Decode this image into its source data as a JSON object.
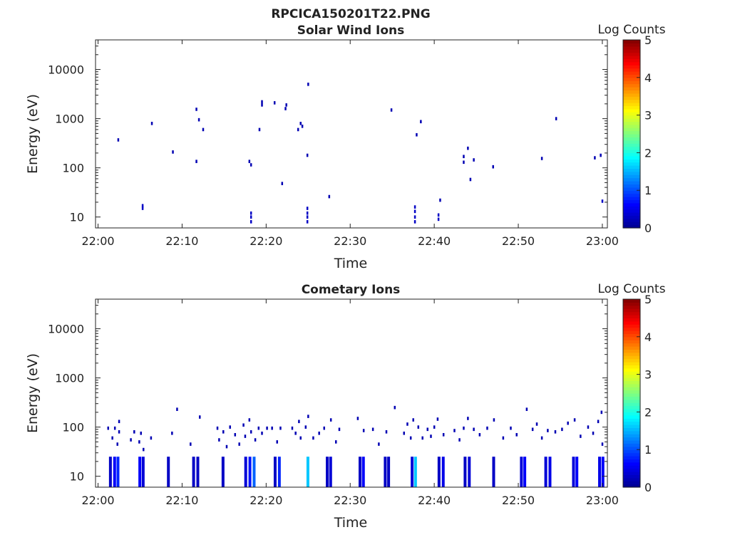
{
  "figure": {
    "title": "RPCICA150201T22.PNG"
  },
  "colors": {
    "colormap": [
      "#00008f",
      "#0000ff",
      "#0080ff",
      "#00ffff",
      "#80ff80",
      "#ffff00",
      "#ff8000",
      "#ff0000",
      "#800000"
    ],
    "axis": "#222222"
  },
  "chart_data": [
    {
      "type": "heatmap",
      "title": "Solar Wind Ions",
      "xlabel": "Time",
      "ylabel": "Energy (eV)",
      "xlim": [
        "22:00",
        "23:00"
      ],
      "xticks": [
        "22:00",
        "22:10",
        "22:20",
        "22:30",
        "22:40",
        "22:50",
        "23:00"
      ],
      "ylim": [
        6,
        40000
      ],
      "yscale": "log",
      "yticks": [
        10,
        100,
        1000,
        10000
      ],
      "ytick_labels": [
        "10",
        "100",
        "1000",
        "10000"
      ],
      "colorbar": {
        "label": "Log Counts",
        "range": [
          0,
          5
        ],
        "ticks": [
          "0",
          "1",
          "2",
          "3",
          "4",
          "5"
        ]
      },
      "points_note": "t in minutes after 22:00, e in eV, v = log counts",
      "points": [
        {
          "t": 2.3,
          "e": 370,
          "v": 0.2
        },
        {
          "t": 5.2,
          "e": 15,
          "v": 0.3
        },
        {
          "t": 5.2,
          "e": 17,
          "v": 0.3
        },
        {
          "t": 6.3,
          "e": 800,
          "v": 0.2
        },
        {
          "t": 8.8,
          "e": 210,
          "v": 0.2
        },
        {
          "t": 11.6,
          "e": 1550,
          "v": 0.2
        },
        {
          "t": 11.6,
          "e": 135,
          "v": 0.2
        },
        {
          "t": 11.9,
          "e": 950,
          "v": 0.2
        },
        {
          "t": 12.4,
          "e": 600,
          "v": 0.2
        },
        {
          "t": 17.9,
          "e": 135,
          "v": 0.2
        },
        {
          "t": 18.1,
          "e": 115,
          "v": 0.2
        },
        {
          "t": 18.1,
          "e": 8,
          "v": 0.3
        },
        {
          "t": 18.1,
          "e": 10,
          "v": 0.3
        },
        {
          "t": 18.1,
          "e": 12,
          "v": 0.3
        },
        {
          "t": 19.1,
          "e": 600,
          "v": 0.2
        },
        {
          "t": 19.4,
          "e": 2200,
          "v": 0.2
        },
        {
          "t": 19.4,
          "e": 1900,
          "v": 0.2
        },
        {
          "t": 20.9,
          "e": 2100,
          "v": 0.2
        },
        {
          "t": 21.8,
          "e": 48,
          "v": 0.2
        },
        {
          "t": 22.2,
          "e": 1600,
          "v": 0.2
        },
        {
          "t": 22.3,
          "e": 1900,
          "v": 0.2
        },
        {
          "t": 23.7,
          "e": 600,
          "v": 0.2
        },
        {
          "t": 24.0,
          "e": 800,
          "v": 0.2
        },
        {
          "t": 24.2,
          "e": 700,
          "v": 0.2
        },
        {
          "t": 24.9,
          "e": 5000,
          "v": 0.2
        },
        {
          "t": 24.8,
          "e": 180,
          "v": 0.2
        },
        {
          "t": 24.8,
          "e": 8,
          "v": 0.3
        },
        {
          "t": 24.8,
          "e": 10,
          "v": 0.3
        },
        {
          "t": 24.8,
          "e": 12,
          "v": 0.3
        },
        {
          "t": 24.8,
          "e": 15,
          "v": 0.3
        },
        {
          "t": 27.4,
          "e": 26,
          "v": 0.2
        },
        {
          "t": 34.8,
          "e": 1500,
          "v": 0.2
        },
        {
          "t": 37.6,
          "e": 8,
          "v": 0.3
        },
        {
          "t": 37.6,
          "e": 10,
          "v": 0.3
        },
        {
          "t": 37.6,
          "e": 13,
          "v": 0.3
        },
        {
          "t": 37.6,
          "e": 16,
          "v": 0.3
        },
        {
          "t": 37.8,
          "e": 470,
          "v": 0.2
        },
        {
          "t": 38.3,
          "e": 870,
          "v": 0.2
        },
        {
          "t": 40.4,
          "e": 9,
          "v": 0.3
        },
        {
          "t": 40.4,
          "e": 11,
          "v": 0.3
        },
        {
          "t": 40.6,
          "e": 22,
          "v": 0.2
        },
        {
          "t": 43.4,
          "e": 130,
          "v": 0.2
        },
        {
          "t": 43.4,
          "e": 170,
          "v": 0.2
        },
        {
          "t": 43.9,
          "e": 250,
          "v": 0.2
        },
        {
          "t": 44.2,
          "e": 58,
          "v": 0.2
        },
        {
          "t": 44.6,
          "e": 145,
          "v": 0.2
        },
        {
          "t": 46.9,
          "e": 105,
          "v": 0.2
        },
        {
          "t": 52.7,
          "e": 155,
          "v": 0.2
        },
        {
          "t": 54.4,
          "e": 1000,
          "v": 0.2
        },
        {
          "t": 59.0,
          "e": 160,
          "v": 0.2
        },
        {
          "t": 59.7,
          "e": 180,
          "v": 0.2
        },
        {
          "t": 59.9,
          "e": 21,
          "v": 0.3
        }
      ]
    },
    {
      "type": "heatmap",
      "title": "Cometary Ions",
      "xlabel": "Time",
      "ylabel": "Energy (eV)",
      "xlim": [
        "22:00",
        "23:00"
      ],
      "xticks": [
        "22:00",
        "22:10",
        "22:20",
        "22:30",
        "22:40",
        "22:50",
        "23:00"
      ],
      "ylim": [
        6,
        40000
      ],
      "yscale": "log",
      "yticks": [
        10,
        100,
        1000,
        10000
      ],
      "ytick_labels": [
        "10",
        "100",
        "1000",
        "10000"
      ],
      "colorbar": {
        "label": "Log Counts",
        "range": [
          0,
          5
        ],
        "ticks": [
          "0",
          "1",
          "2",
          "3",
          "4",
          "5"
        ]
      },
      "points_note": "t in minutes after 22:00, e in eV, v = log counts; low-energy columns span roughly 6-25 eV",
      "columns": [
        {
          "t": 1.3,
          "v": 0.3
        },
        {
          "t": 1.8,
          "v": 0.6
        },
        {
          "t": 2.2,
          "v": 0.8
        },
        {
          "t": 4.8,
          "v": 0.6
        },
        {
          "t": 5.2,
          "v": 0.4
        },
        {
          "t": 8.2,
          "v": 0.3
        },
        {
          "t": 11.2,
          "v": 0.3
        },
        {
          "t": 11.7,
          "v": 0.3
        },
        {
          "t": 14.7,
          "v": 0.3
        },
        {
          "t": 17.4,
          "v": 0.4
        },
        {
          "t": 17.9,
          "v": 0.7
        },
        {
          "t": 18.4,
          "v": 1.1
        },
        {
          "t": 20.9,
          "v": 0.3
        },
        {
          "t": 21.4,
          "v": 0.8
        },
        {
          "t": 24.8,
          "v": 1.6
        },
        {
          "t": 27.1,
          "v": 0.3
        },
        {
          "t": 27.5,
          "v": 0.4
        },
        {
          "t": 31.0,
          "v": 0.3
        },
        {
          "t": 31.4,
          "v": 0.6
        },
        {
          "t": 34.0,
          "v": 0.3
        },
        {
          "t": 34.4,
          "v": 0.3
        },
        {
          "t": 37.2,
          "v": 0.4
        },
        {
          "t": 37.6,
          "v": 1.6
        },
        {
          "t": 40.4,
          "v": 0.3
        },
        {
          "t": 40.9,
          "v": 0.5
        },
        {
          "t": 43.5,
          "v": 0.3
        },
        {
          "t": 44.0,
          "v": 0.4
        },
        {
          "t": 46.9,
          "v": 0.3
        },
        {
          "t": 50.2,
          "v": 0.4
        },
        {
          "t": 50.6,
          "v": 0.6
        },
        {
          "t": 53.1,
          "v": 0.4
        },
        {
          "t": 53.6,
          "v": 0.5
        },
        {
          "t": 56.4,
          "v": 0.4
        },
        {
          "t": 56.8,
          "v": 0.6
        },
        {
          "t": 59.5,
          "v": 0.5
        },
        {
          "t": 59.9,
          "v": 0.6
        }
      ],
      "points": [
        {
          "t": 1.1,
          "e": 95,
          "v": 0.2
        },
        {
          "t": 1.6,
          "e": 60,
          "v": 0.2
        },
        {
          "t": 1.9,
          "e": 95,
          "v": 0.2
        },
        {
          "t": 2.4,
          "e": 130,
          "v": 0.2
        },
        {
          "t": 2.4,
          "e": 80,
          "v": 0.2
        },
        {
          "t": 2.2,
          "e": 45,
          "v": 0.2
        },
        {
          "t": 3.8,
          "e": 55,
          "v": 0.2
        },
        {
          "t": 4.2,
          "e": 80,
          "v": 0.2
        },
        {
          "t": 4.8,
          "e": 50,
          "v": 0.2
        },
        {
          "t": 5.0,
          "e": 75,
          "v": 0.2
        },
        {
          "t": 5.3,
          "e": 35,
          "v": 0.2
        },
        {
          "t": 6.2,
          "e": 60,
          "v": 0.2
        },
        {
          "t": 8.7,
          "e": 75,
          "v": 0.2
        },
        {
          "t": 9.3,
          "e": 230,
          "v": 0.2
        },
        {
          "t": 10.9,
          "e": 45,
          "v": 0.2
        },
        {
          "t": 12.0,
          "e": 160,
          "v": 0.2
        },
        {
          "t": 14.1,
          "e": 95,
          "v": 0.2
        },
        {
          "t": 14.3,
          "e": 55,
          "v": 0.2
        },
        {
          "t": 14.8,
          "e": 80,
          "v": 0.2
        },
        {
          "t": 15.2,
          "e": 40,
          "v": 0.2
        },
        {
          "t": 15.6,
          "e": 100,
          "v": 0.2
        },
        {
          "t": 16.2,
          "e": 70,
          "v": 0.2
        },
        {
          "t": 16.7,
          "e": 45,
          "v": 0.2
        },
        {
          "t": 17.2,
          "e": 110,
          "v": 0.2
        },
        {
          "t": 17.4,
          "e": 65,
          "v": 0.2
        },
        {
          "t": 17.9,
          "e": 140,
          "v": 0.2
        },
        {
          "t": 18.1,
          "e": 80,
          "v": 0.2
        },
        {
          "t": 18.6,
          "e": 55,
          "v": 0.2
        },
        {
          "t": 19.0,
          "e": 95,
          "v": 0.2
        },
        {
          "t": 19.4,
          "e": 75,
          "v": 0.2
        },
        {
          "t": 20.0,
          "e": 95,
          "v": 0.2
        },
        {
          "t": 20.6,
          "e": 95,
          "v": 0.2
        },
        {
          "t": 21.2,
          "e": 50,
          "v": 0.2
        },
        {
          "t": 21.6,
          "e": 95,
          "v": 0.2
        },
        {
          "t": 23.0,
          "e": 95,
          "v": 0.2
        },
        {
          "t": 23.4,
          "e": 75,
          "v": 0.2
        },
        {
          "t": 23.8,
          "e": 130,
          "v": 0.2
        },
        {
          "t": 24.0,
          "e": 60,
          "v": 0.2
        },
        {
          "t": 24.6,
          "e": 100,
          "v": 0.2
        },
        {
          "t": 24.9,
          "e": 165,
          "v": 0.2
        },
        {
          "t": 25.5,
          "e": 60,
          "v": 0.2
        },
        {
          "t": 26.2,
          "e": 75,
          "v": 0.2
        },
        {
          "t": 26.8,
          "e": 95,
          "v": 0.2
        },
        {
          "t": 27.6,
          "e": 140,
          "v": 0.2
        },
        {
          "t": 28.2,
          "e": 50,
          "v": 0.2
        },
        {
          "t": 28.6,
          "e": 90,
          "v": 0.2
        },
        {
          "t": 30.8,
          "e": 150,
          "v": 0.2
        },
        {
          "t": 31.5,
          "e": 85,
          "v": 0.2
        },
        {
          "t": 32.6,
          "e": 90,
          "v": 0.2
        },
        {
          "t": 33.3,
          "e": 45,
          "v": 0.2
        },
        {
          "t": 34.2,
          "e": 80,
          "v": 0.2
        },
        {
          "t": 35.2,
          "e": 250,
          "v": 0.2
        },
        {
          "t": 36.3,
          "e": 75,
          "v": 0.2
        },
        {
          "t": 36.7,
          "e": 115,
          "v": 0.2
        },
        {
          "t": 37.1,
          "e": 60,
          "v": 0.2
        },
        {
          "t": 37.4,
          "e": 140,
          "v": 0.2
        },
        {
          "t": 38.0,
          "e": 100,
          "v": 0.2
        },
        {
          "t": 38.5,
          "e": 60,
          "v": 0.2
        },
        {
          "t": 39.1,
          "e": 90,
          "v": 0.2
        },
        {
          "t": 39.5,
          "e": 65,
          "v": 0.2
        },
        {
          "t": 39.9,
          "e": 100,
          "v": 0.2
        },
        {
          "t": 40.3,
          "e": 145,
          "v": 0.2
        },
        {
          "t": 41.0,
          "e": 70,
          "v": 0.2
        },
        {
          "t": 42.3,
          "e": 85,
          "v": 0.2
        },
        {
          "t": 42.9,
          "e": 55,
          "v": 0.2
        },
        {
          "t": 43.4,
          "e": 95,
          "v": 0.2
        },
        {
          "t": 43.9,
          "e": 150,
          "v": 0.2
        },
        {
          "t": 44.6,
          "e": 90,
          "v": 0.2
        },
        {
          "t": 45.3,
          "e": 70,
          "v": 0.2
        },
        {
          "t": 46.2,
          "e": 95,
          "v": 0.2
        },
        {
          "t": 47.0,
          "e": 140,
          "v": 0.2
        },
        {
          "t": 48.1,
          "e": 60,
          "v": 0.2
        },
        {
          "t": 49.0,
          "e": 95,
          "v": 0.2
        },
        {
          "t": 49.7,
          "e": 70,
          "v": 0.2
        },
        {
          "t": 50.9,
          "e": 230,
          "v": 0.2
        },
        {
          "t": 51.6,
          "e": 90,
          "v": 0.2
        },
        {
          "t": 52.1,
          "e": 115,
          "v": 0.2
        },
        {
          "t": 52.7,
          "e": 60,
          "v": 0.2
        },
        {
          "t": 53.4,
          "e": 85,
          "v": 0.2
        },
        {
          "t": 54.3,
          "e": 80,
          "v": 0.2
        },
        {
          "t": 55.1,
          "e": 90,
          "v": 0.2
        },
        {
          "t": 55.8,
          "e": 120,
          "v": 0.2
        },
        {
          "t": 56.6,
          "e": 140,
          "v": 0.2
        },
        {
          "t": 57.3,
          "e": 65,
          "v": 0.2
        },
        {
          "t": 58.2,
          "e": 100,
          "v": 0.2
        },
        {
          "t": 58.8,
          "e": 75,
          "v": 0.2
        },
        {
          "t": 59.4,
          "e": 130,
          "v": 0.2
        },
        {
          "t": 59.8,
          "e": 200,
          "v": 0.2
        },
        {
          "t": 59.9,
          "e": 45,
          "v": 0.2
        }
      ]
    }
  ]
}
